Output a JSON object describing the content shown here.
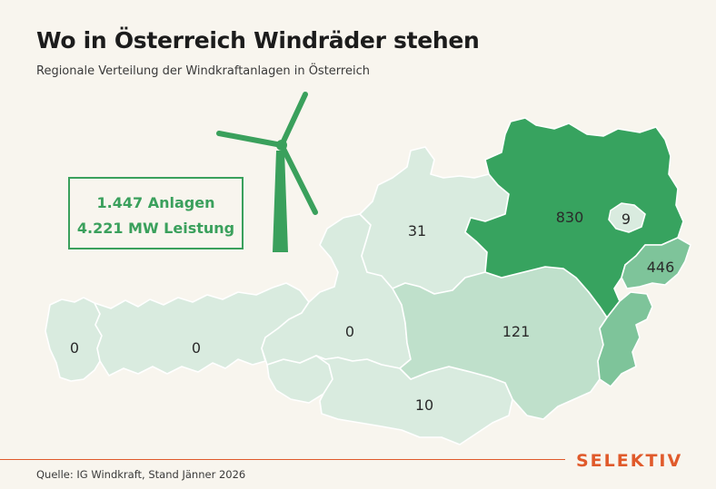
{
  "header": {
    "title": "Wo in Österreich Windräder stehen",
    "subtitle": "Regionale Verteilung der Windkraftanlagen in Österreich"
  },
  "stats": {
    "line1": "1.447 Anlagen",
    "line2": "4.221 MW Leistung"
  },
  "regions": [
    {
      "id": "vorarlberg",
      "value": "0",
      "color": "#d9ebdf"
    },
    {
      "id": "tirol",
      "value": "0",
      "color": "#d9ebdf"
    },
    {
      "id": "salzburg",
      "value": "0",
      "color": "#d9ebdf"
    },
    {
      "id": "oberoesterreich",
      "value": "31",
      "color": "#d9ebdf"
    },
    {
      "id": "kaernten",
      "value": "10",
      "color": "#d9ebdf"
    },
    {
      "id": "steiermark",
      "value": "121",
      "color": "#bfe0cb"
    },
    {
      "id": "niederoesterreich",
      "value": "830",
      "color": "#37a35f"
    },
    {
      "id": "wien",
      "value": "9",
      "color": "#d9ebdf"
    },
    {
      "id": "burgenland",
      "value": "446",
      "color": "#7ec49a"
    }
  ],
  "colors": {
    "accent_green": "#3aa05c",
    "brand_orange": "#e05a2b",
    "background": "#f8f5ee"
  },
  "icons": {
    "turbine": "wind-turbine-icon"
  },
  "footer": {
    "source": "Quelle: IG Windkraft, Stand Jänner 2026",
    "brand": "SELEKTIV"
  }
}
